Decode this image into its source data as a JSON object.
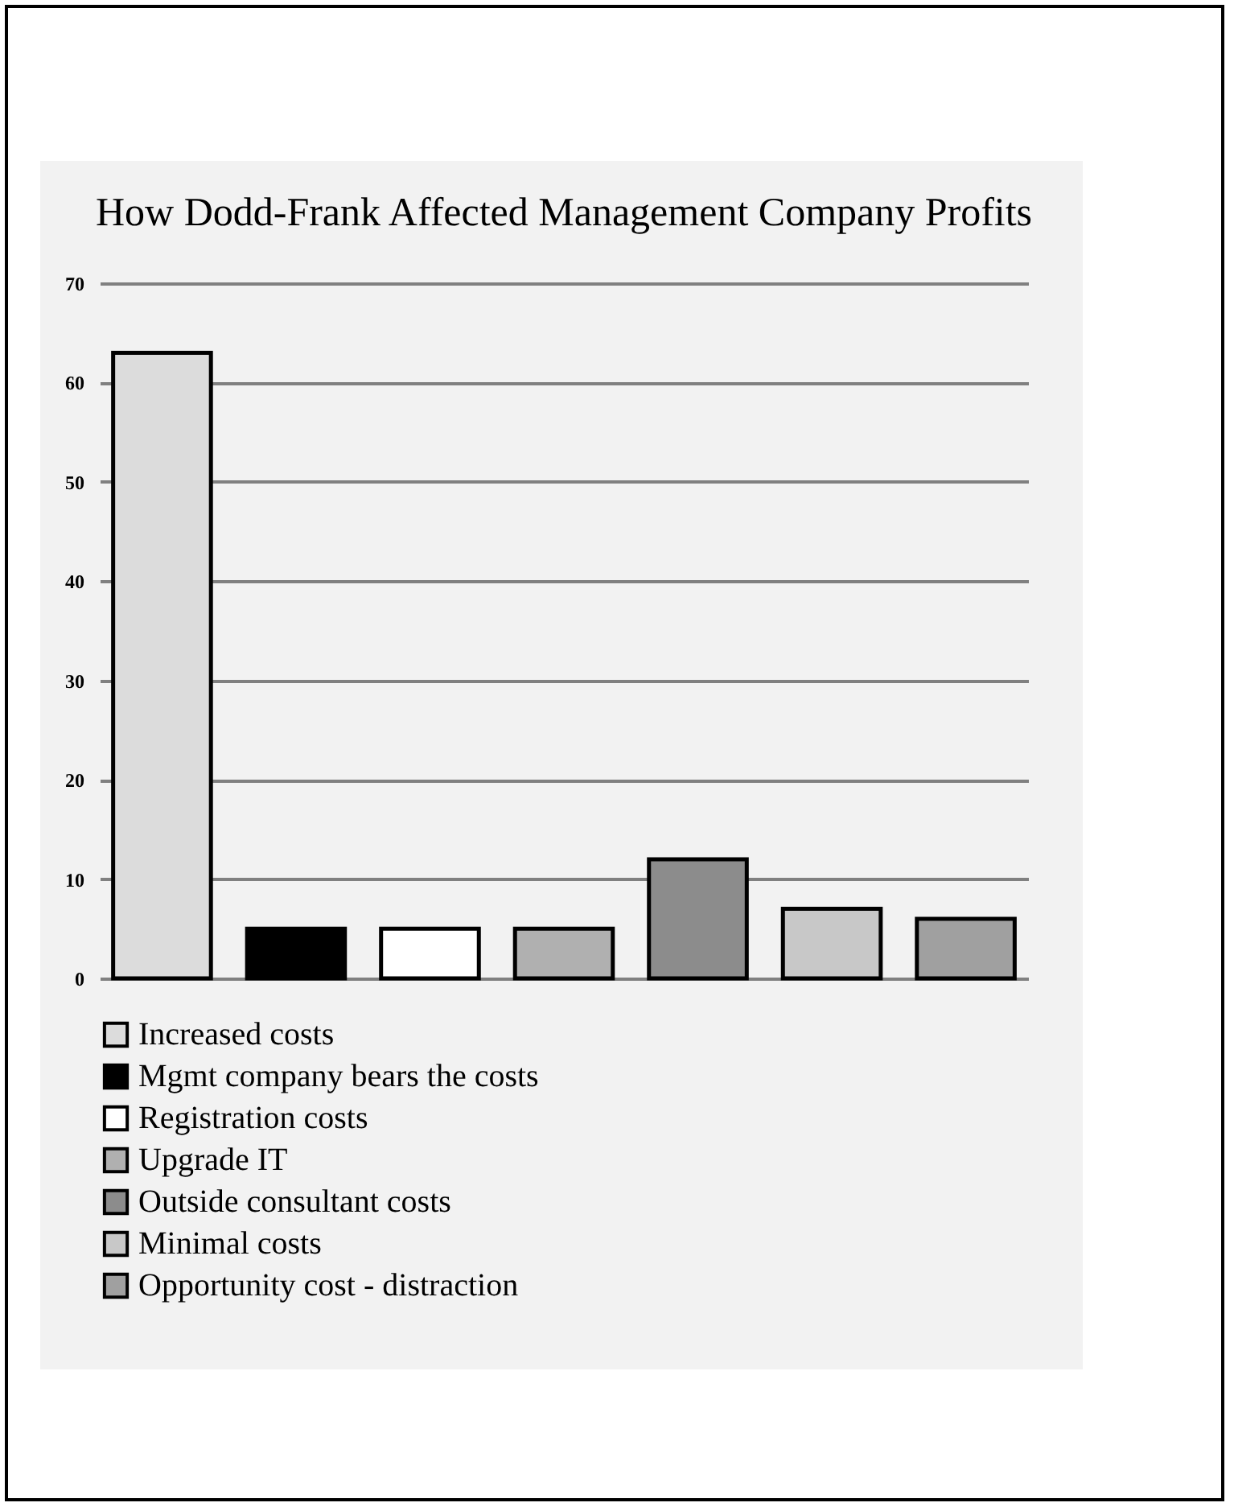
{
  "chart_data": {
    "type": "bar",
    "title": "How Dodd-Frank Affected Management Company Profits",
    "categories": [
      null
    ],
    "series": [
      {
        "name": "Increased costs",
        "color": "#dcdcdc",
        "values": [
          63
        ]
      },
      {
        "name": "Mgmt company bears the costs",
        "color": "#000000",
        "values": [
          5
        ]
      },
      {
        "name": "Registration costs",
        "color": "#ffffff",
        "values": [
          5
        ]
      },
      {
        "name": "Upgrade IT",
        "color": "#b0b0b0",
        "values": [
          5
        ]
      },
      {
        "name": "Outside consultant costs",
        "color": "#8c8c8c",
        "values": [
          12
        ]
      },
      {
        "name": "Minimal costs",
        "color": "#c8c8c8",
        "values": [
          7
        ]
      },
      {
        "name": "Opportunity cost - distraction",
        "color": "#a0a0a0",
        "values": [
          6
        ]
      }
    ],
    "ylim": [
      0,
      70
    ],
    "yticks": [
      0,
      10,
      20,
      30,
      40,
      50,
      60,
      70
    ],
    "grid": "y",
    "legend": "bottom",
    "tick_labels": "y"
  }
}
